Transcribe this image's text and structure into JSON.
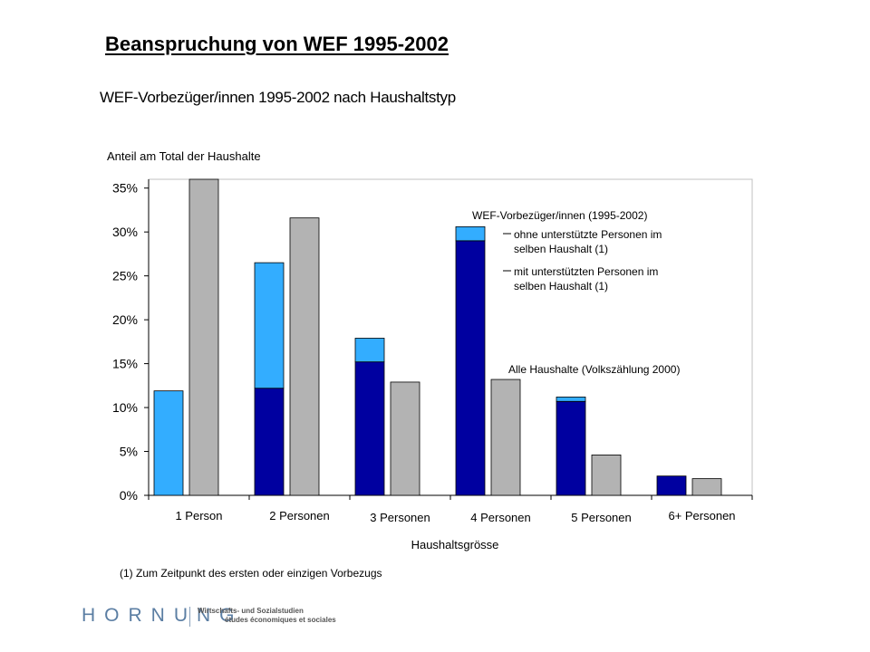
{
  "slide": {
    "title": "Beanspruchung von WEF 1995-2002",
    "footnote": "(1) Zum Zeitpunkt des ersten oder einzigen Vorbezugs",
    "logo": "HORNUNG",
    "logo_tagline_1": "Wirtschafts- und Sozialstudien",
    "logo_tagline_2": "études économiques et sociales"
  },
  "chart_data": {
    "type": "bar",
    "title": "WEF-Vorbezüger/innen 1995-2002 nach Haushaltstyp",
    "ylabel": "Anteil am Total der Haushalte",
    "xlabel": "Haushaltsgrösse",
    "categories": [
      "1 Person",
      "2 Personen",
      "3 Personen",
      "4 Personen",
      "5 Personen",
      "6+ Personen"
    ],
    "ylim": [
      0,
      36
    ],
    "yticks": [
      0,
      5,
      10,
      15,
      20,
      25,
      30,
      35
    ],
    "ytick_labels": [
      "0%",
      "5%",
      "10%",
      "15%",
      "20%",
      "25%",
      "30%",
      "35%"
    ],
    "stacked_group_label": "WEF-Vorbezüger/innen (1995-2002)",
    "series": [
      {
        "name": "mit unterstützten Personen im selben Haushalt (1)",
        "stack": "wef",
        "color": "#0000a0",
        "values": [
          0,
          12.2,
          15.2,
          29.0,
          10.7,
          2.2
        ]
      },
      {
        "name": "ohne unterstützte Personen im selben Haushalt (1)",
        "stack": "wef",
        "color": "#33adff",
        "values": [
          11.9,
          14.3,
          2.7,
          1.6,
          0.5,
          0.0
        ]
      },
      {
        "name": "Alle Haushalte (Volkszählung 2000)",
        "stack": "all",
        "color": "#b3b3b3",
        "values": [
          36.0,
          31.6,
          12.9,
          13.2,
          4.6,
          1.9
        ]
      }
    ],
    "annotations": [
      "WEF-Vorbezüger/innen (1995-2002)",
      "ohne unterstützte Personen im selben Haushalt (1)",
      "mit unterstützten Personen im selben Haushalt (1)",
      "Alle Haushalte (Volkszählung 2000)"
    ],
    "grid": false
  }
}
